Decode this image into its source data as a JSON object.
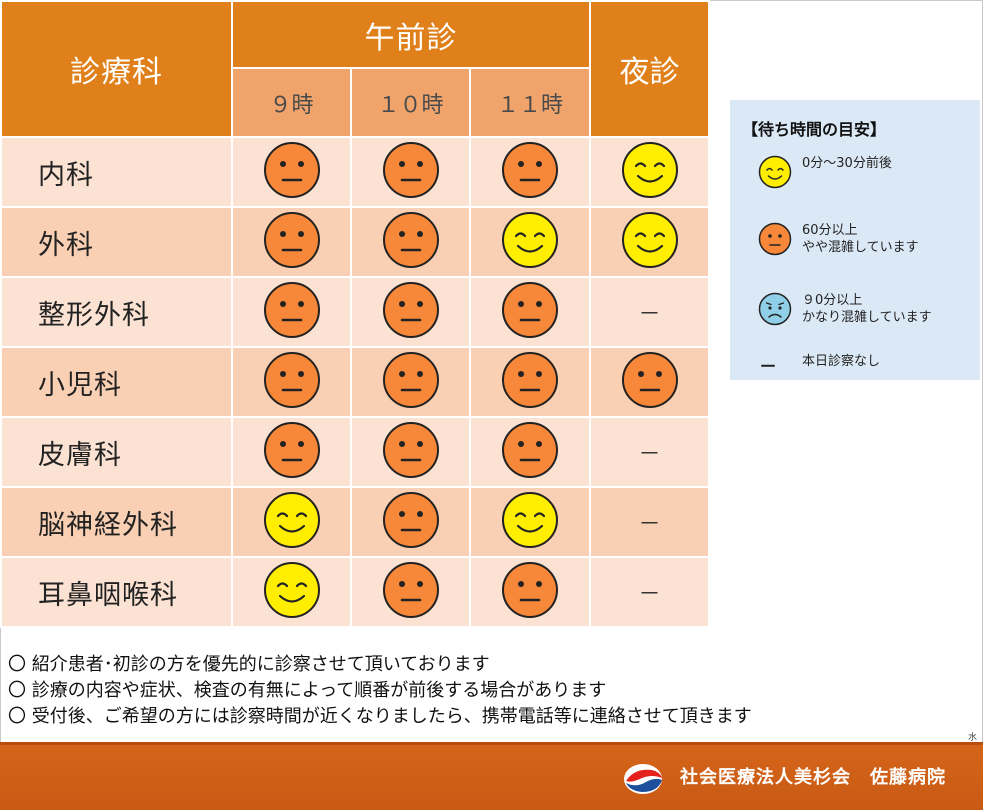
{
  "header": {
    "department_label": "診療科",
    "am_label": "午前診",
    "night_label": "夜診",
    "times": [
      "９時",
      "１０時",
      "１１時"
    ]
  },
  "rows": [
    {
      "name": "内科",
      "cells": [
        "busy",
        "busy",
        "busy",
        "ok"
      ]
    },
    {
      "name": "外科",
      "cells": [
        "busy",
        "busy",
        "ok",
        "ok"
      ]
    },
    {
      "name": "整形外科",
      "cells": [
        "busy",
        "busy",
        "busy",
        "none"
      ]
    },
    {
      "name": "小児科",
      "cells": [
        "busy",
        "busy",
        "busy",
        "busy"
      ]
    },
    {
      "name": "皮膚科",
      "cells": [
        "busy",
        "busy",
        "busy",
        "none"
      ]
    },
    {
      "name": "脳神経外科",
      "cells": [
        "ok",
        "busy",
        "ok",
        "none"
      ]
    },
    {
      "name": "耳鼻咽喉科",
      "cells": [
        "ok",
        "busy",
        "busy",
        "none"
      ]
    }
  ],
  "none_symbol": "－",
  "legend": {
    "title": "【待ち時間の目安】",
    "items": [
      {
        "icon": "smile-face-icon",
        "lines": [
          "0分～30分前後"
        ]
      },
      {
        "icon": "neutral-face-icon",
        "lines": [
          "60分以上",
          "やや混雑しています"
        ]
      },
      {
        "icon": "sad-face-icon",
        "lines": [
          "９0分以上",
          "かなり混雑しています"
        ]
      },
      {
        "icon": "dash-icon",
        "lines": [
          "本日診察なし"
        ]
      }
    ],
    "dash": "ー"
  },
  "notes": [
    "〇 紹介患者･初診の方を優先的に診察させて頂いております",
    "〇 診療の内容や症状、検査の有無によって順番が前後する場合があります",
    "〇 受付後、ご希望の方には診察時間が近くなりましたら、携帯電話等に連絡させて頂きます"
  ],
  "small_mark": "水",
  "footer": {
    "organization": "社会医療法人美杉会　佐藤病院"
  },
  "colors": {
    "header_orange": "#e0801a",
    "time_header": "#f0a46c",
    "row_light": "#fbe2d3",
    "row_dark": "#f9d0b3",
    "smile_face": "#ffee00",
    "busy_face": "#f7883a",
    "sad_face": "#8fd0e8",
    "legend_bg": "#dbe8f5",
    "footer": "#d5651a"
  }
}
